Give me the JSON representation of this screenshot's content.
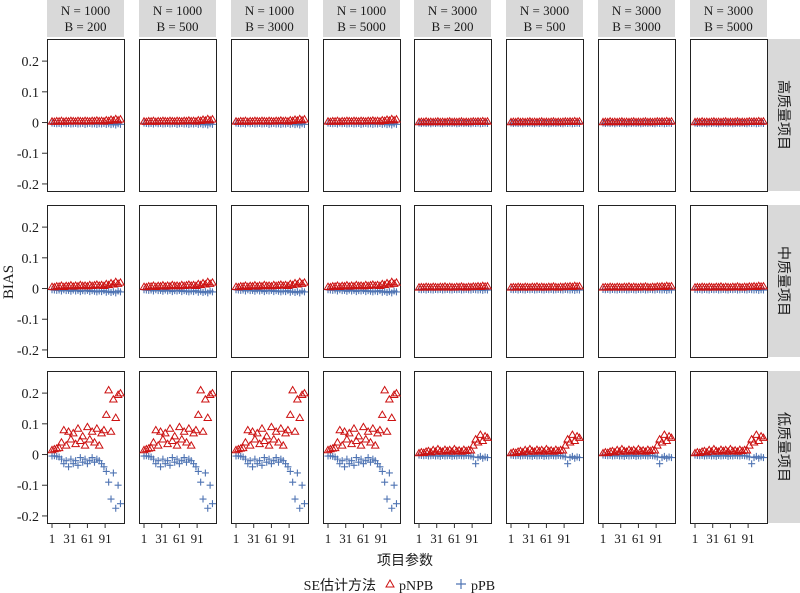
{
  "chart_data": {
    "type": "scatter",
    "title": "",
    "xlabel": "项目参数",
    "ylabel": "BIAS",
    "xlim": [
      -7.5,
      123
    ],
    "ylim": [
      -0.223,
      0.272
    ],
    "x_ticks": [
      1,
      31,
      61,
      91
    ],
    "x_tick_labels": [
      "1",
      "31",
      "61",
      "91"
    ],
    "y_ticks": [
      0.2,
      0.1,
      0,
      -0.1,
      -0.2
    ],
    "y_tick_labels": [
      "0.2",
      "0.1",
      "0",
      "-0.1",
      "-0.2"
    ],
    "grid": false,
    "legend": {
      "title": "SE估计方法",
      "placement": "bottom",
      "entries": [
        {
          "name": "pNPB",
          "marker": "triangle-open",
          "color": "#cc1111"
        },
        {
          "name": "pPB",
          "marker": "plus",
          "color": "#4f74b3"
        }
      ]
    },
    "columns": [
      {
        "n": "N = 1000",
        "b": "B = 200"
      },
      {
        "n": "N = 1000",
        "b": "B = 500"
      },
      {
        "n": "N = 1000",
        "b": "B = 3000"
      },
      {
        "n": "N = 1000",
        "b": "B = 5000"
      },
      {
        "n": "N = 3000",
        "b": "B = 200"
      },
      {
        "n": "N = 3000",
        "b": "B = 500"
      },
      {
        "n": "N = 3000",
        "b": "B = 3000"
      },
      {
        "n": "N = 3000",
        "b": "B = 5000"
      }
    ],
    "rows": [
      "高质量项目",
      "中质量项目",
      "低质量项目"
    ],
    "x": [
      1,
      5,
      9,
      13,
      17,
      21,
      25,
      29,
      33,
      37,
      41,
      45,
      49,
      53,
      57,
      61,
      65,
      69,
      73,
      77,
      81,
      85,
      89,
      93,
      97,
      101,
      105,
      109,
      113,
      117
    ],
    "series_sets": {
      "high_N1000": {
        "pNPB": [
          0.004,
          0.003,
          0.005,
          0.004,
          0.006,
          0.003,
          0.005,
          0.004,
          0.006,
          0.005,
          0.004,
          0.006,
          0.005,
          0.004,
          0.006,
          0.005,
          0.004,
          0.006,
          0.005,
          0.007,
          0.005,
          0.006,
          0.004,
          0.008,
          0.006,
          0.01,
          0.007,
          0.012,
          0.008,
          0.011
        ],
        "pPB": [
          -0.002,
          -0.003,
          -0.004,
          -0.003,
          -0.005,
          -0.002,
          -0.004,
          -0.003,
          -0.005,
          -0.004,
          -0.003,
          -0.005,
          -0.004,
          -0.003,
          -0.006,
          -0.004,
          -0.003,
          -0.005,
          -0.004,
          -0.006,
          -0.004,
          -0.005,
          -0.003,
          -0.006,
          -0.004,
          -0.007,
          -0.005,
          -0.008,
          -0.004,
          -0.006
        ]
      },
      "high_N3000": {
        "pNPB": [
          0.002,
          0.003,
          0.002,
          0.004,
          0.002,
          0.003,
          0.002,
          0.003,
          0.004,
          0.002,
          0.003,
          0.002,
          0.003,
          0.004,
          0.002,
          0.003,
          0.002,
          0.003,
          0.004,
          0.002,
          0.003,
          0.002,
          0.003,
          0.004,
          0.003,
          0.004,
          0.003,
          0.005,
          0.003,
          0.004
        ],
        "pPB": [
          -0.002,
          -0.003,
          -0.002,
          -0.003,
          -0.002,
          -0.004,
          -0.002,
          -0.003,
          -0.002,
          -0.003,
          -0.004,
          -0.002,
          -0.003,
          -0.002,
          -0.003,
          -0.002,
          -0.004,
          -0.003,
          -0.002,
          -0.003,
          -0.002,
          -0.003,
          -0.004,
          -0.002,
          -0.003,
          -0.002,
          -0.004,
          -0.003,
          -0.002,
          -0.003
        ]
      },
      "mid_N1000": {
        "pNPB": [
          0.006,
          0.005,
          0.008,
          0.007,
          0.01,
          0.006,
          0.009,
          0.008,
          0.011,
          0.007,
          0.01,
          0.008,
          0.012,
          0.009,
          0.01,
          0.008,
          0.012,
          0.009,
          0.011,
          0.013,
          0.01,
          0.012,
          0.009,
          0.015,
          0.012,
          0.018,
          0.014,
          0.022,
          0.016,
          0.02
        ],
        "pPB": [
          -0.004,
          -0.005,
          -0.006,
          -0.005,
          -0.008,
          -0.004,
          -0.007,
          -0.006,
          -0.009,
          -0.005,
          -0.008,
          -0.006,
          -0.01,
          -0.007,
          -0.008,
          -0.006,
          -0.01,
          -0.007,
          -0.009,
          -0.011,
          -0.008,
          -0.01,
          -0.007,
          -0.012,
          -0.009,
          -0.013,
          -0.01,
          -0.014,
          -0.008,
          -0.011
        ]
      },
      "mid_N3000": {
        "pNPB": [
          0.004,
          0.005,
          0.004,
          0.006,
          0.005,
          0.004,
          0.006,
          0.005,
          0.004,
          0.006,
          0.005,
          0.007,
          0.004,
          0.006,
          0.005,
          0.004,
          0.006,
          0.005,
          0.007,
          0.005,
          0.004,
          0.006,
          0.005,
          0.007,
          0.006,
          0.008,
          0.006,
          0.009,
          0.007,
          0.008
        ],
        "pPB": [
          -0.003,
          -0.004,
          -0.003,
          -0.005,
          -0.003,
          -0.004,
          -0.005,
          -0.003,
          -0.004,
          -0.003,
          -0.005,
          -0.004,
          -0.003,
          -0.004,
          -0.005,
          -0.003,
          -0.004,
          -0.003,
          -0.005,
          -0.004,
          -0.003,
          -0.004,
          -0.005,
          -0.003,
          -0.004,
          -0.005,
          -0.004,
          -0.006,
          -0.004,
          -0.005
        ]
      },
      "low_N1000": {
        "pNPB": [
          0.015,
          0.018,
          0.02,
          0.022,
          0.04,
          0.08,
          0.03,
          0.075,
          0.05,
          0.07,
          0.035,
          0.085,
          0.045,
          0.06,
          0.03,
          0.09,
          0.05,
          0.075,
          0.04,
          0.085,
          0.03,
          0.07,
          0.08,
          0.13,
          0.21,
          0.075,
          0.18,
          0.12,
          0.195,
          0.2
        ],
        "pPB": [
          -0.005,
          -0.004,
          -0.006,
          -0.008,
          -0.015,
          -0.03,
          -0.02,
          -0.04,
          -0.015,
          -0.03,
          -0.02,
          -0.035,
          -0.01,
          -0.025,
          -0.015,
          -0.03,
          -0.02,
          -0.01,
          -0.025,
          -0.015,
          -0.02,
          -0.03,
          -0.04,
          -0.055,
          -0.09,
          -0.145,
          -0.06,
          -0.175,
          -0.1,
          -0.16
        ]
      },
      "low_N3000": {
        "pNPB": [
          0.005,
          0.008,
          0.006,
          0.01,
          0.012,
          0.008,
          0.015,
          0.01,
          0.018,
          0.012,
          0.01,
          0.016,
          0.012,
          0.015,
          0.01,
          0.018,
          0.012,
          0.014,
          0.01,
          0.016,
          0.012,
          0.015,
          0.014,
          0.03,
          0.05,
          0.04,
          0.065,
          0.045,
          0.06,
          0.055
        ],
        "pPB": [
          -0.002,
          -0.003,
          -0.004,
          -0.003,
          -0.005,
          -0.004,
          -0.003,
          -0.005,
          -0.004,
          -0.006,
          -0.003,
          -0.005,
          -0.004,
          -0.003,
          -0.006,
          -0.004,
          -0.005,
          -0.003,
          -0.004,
          -0.005,
          -0.003,
          -0.004,
          -0.005,
          -0.008,
          -0.03,
          -0.01,
          -0.006,
          -0.012,
          -0.008,
          -0.01
        ]
      }
    },
    "panel_series": [
      [
        "high_N1000",
        "high_N1000",
        "high_N1000",
        "high_N1000",
        "high_N3000",
        "high_N3000",
        "high_N3000",
        "high_N3000"
      ],
      [
        "mid_N1000",
        "mid_N1000",
        "mid_N1000",
        "mid_N1000",
        "mid_N3000",
        "mid_N3000",
        "mid_N3000",
        "mid_N3000"
      ],
      [
        "low_N1000",
        "low_N1000",
        "low_N1000",
        "low_N1000",
        "low_N3000",
        "low_N3000",
        "low_N3000",
        "low_N3000"
      ]
    ]
  }
}
